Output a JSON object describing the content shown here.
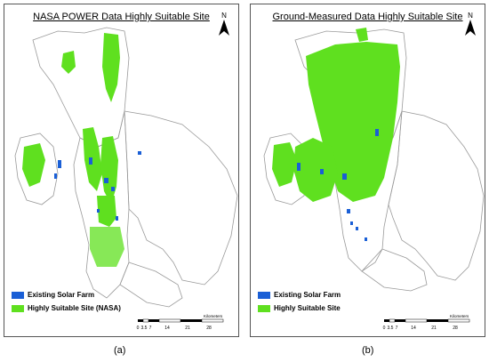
{
  "panels": [
    {
      "title": "NASA POWER Data Highly Suitable Site",
      "north": "N",
      "legend": [
        {
          "label": "Existing Solar Farm",
          "color": "#1a5fd6"
        },
        {
          "label": "Highly Suitable Site (NASA)",
          "color": "#5fe01f"
        }
      ],
      "scale": {
        "ticks": [
          "0",
          "3.5",
          "7",
          "14",
          "21",
          "28"
        ],
        "unit": "Kilometers"
      },
      "caption": "(a)"
    },
    {
      "title": "Ground-Measured Data Highly Suitable Site",
      "north": "N",
      "legend": [
        {
          "label": "Existing Solar Farm",
          "color": "#1a5fd6"
        },
        {
          "label": "Highly Suitable Site",
          "color": "#5fe01f"
        }
      ],
      "scale": {
        "ticks": [
          "0",
          "3.5",
          "7",
          "14",
          "21",
          "28"
        ],
        "unit": "Kilometers"
      },
      "caption": "(b)"
    }
  ],
  "colors": {
    "suitable": "#5fe01f",
    "solar_farm": "#1a5fd6",
    "boundary": "#9a9a9a"
  }
}
